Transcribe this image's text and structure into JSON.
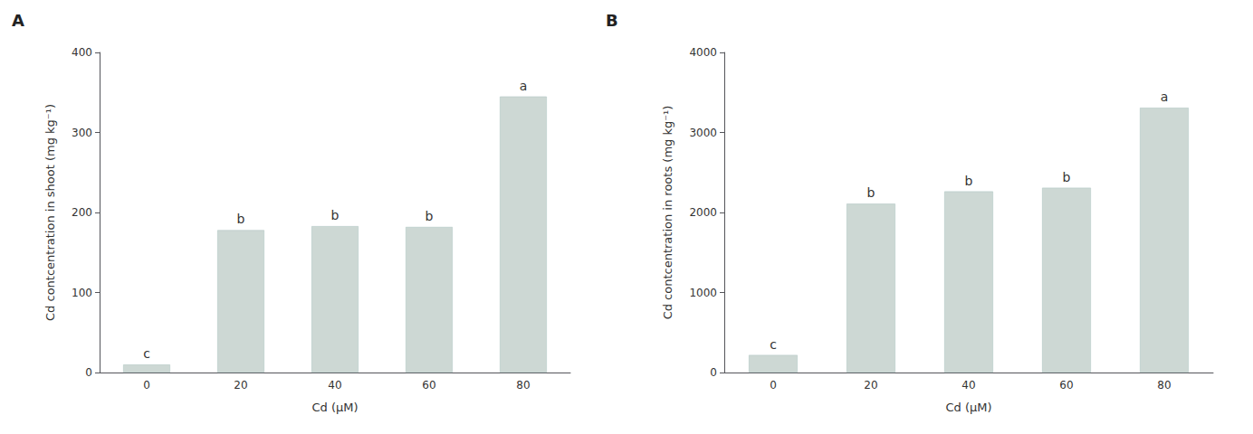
{
  "chart_data": [
    {
      "type": "bar",
      "title": "A",
      "categories": [
        "0",
        "20",
        "40",
        "60",
        "80"
      ],
      "values": [
        10,
        178,
        183,
        182,
        345
      ],
      "annotations": [
        "c",
        "b",
        "b",
        "b",
        "a"
      ],
      "xlabel": "Cd (μM)",
      "ylabel": "Cd contcentration in shoot (mg kg⁻¹)",
      "ylim": [
        0,
        400
      ],
      "yticks": [
        0,
        100,
        200,
        300,
        400
      ],
      "color": "#cdd8d4",
      "grid": false
    },
    {
      "type": "bar",
      "title": "B",
      "categories": [
        "0",
        "20",
        "40",
        "60",
        "80"
      ],
      "values": [
        220,
        2110,
        2265,
        2310,
        3310
      ],
      "annotations": [
        "c",
        "b",
        "b",
        "b",
        "a"
      ],
      "xlabel": "Cd (μM)",
      "ylabel": "Cd contcentration in roots (mg kg⁻¹)",
      "ylim": [
        0,
        4000
      ],
      "yticks": [
        0,
        1000,
        2000,
        3000,
        4000
      ],
      "color": "#cdd8d4",
      "grid": false
    }
  ]
}
